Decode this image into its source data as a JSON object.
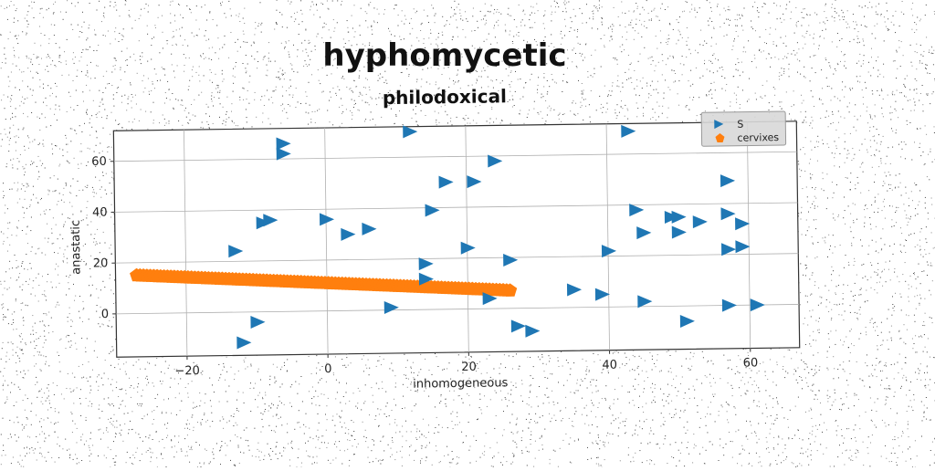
{
  "chart_data": {
    "type": "scatter",
    "suptitle": "hyphomycetic",
    "title": "philodoxical",
    "xlabel": "inhomogeneous",
    "ylabel": "anastatic",
    "xlim": [
      -30,
      67
    ],
    "ylim": [
      -17,
      72
    ],
    "xticks": [
      -20,
      0,
      20,
      40,
      60
    ],
    "yticks": [
      0,
      20,
      40,
      60
    ],
    "xtick_labels": [
      "−20",
      "0",
      "20",
      "40",
      "60"
    ],
    "ytick_labels": [
      "0",
      "20",
      "40",
      "60"
    ],
    "grid": true,
    "legend_position": "upper right",
    "series": [
      {
        "name": "S",
        "marker": "triangle-right",
        "color": "#1f77b4",
        "points": [
          [
            12,
            70
          ],
          [
            -6,
            66
          ],
          [
            -6,
            62
          ],
          [
            43,
            69
          ],
          [
            24,
            58
          ],
          [
            17,
            50
          ],
          [
            21,
            50
          ],
          [
            57,
            49
          ],
          [
            15,
            39
          ],
          [
            -9,
            35
          ],
          [
            -8,
            36
          ],
          [
            0,
            36
          ],
          [
            44,
            38
          ],
          [
            49,
            35
          ],
          [
            50,
            35
          ],
          [
            57,
            36
          ],
          [
            53,
            33
          ],
          [
            59,
            32
          ],
          [
            6,
            32
          ],
          [
            3,
            30
          ],
          [
            45,
            29
          ],
          [
            50,
            29
          ],
          [
            -13,
            24
          ],
          [
            20,
            24
          ],
          [
            40,
            22
          ],
          [
            57,
            22
          ],
          [
            59,
            23
          ],
          [
            26,
            19
          ],
          [
            14,
            18
          ],
          [
            14,
            12
          ],
          [
            35,
            7
          ],
          [
            39,
            5
          ],
          [
            23,
            4
          ],
          [
            9,
            1
          ],
          [
            45,
            2
          ],
          [
            57,
            0
          ],
          [
            61,
            0
          ],
          [
            -10,
            -4
          ],
          [
            51,
            -6
          ],
          [
            27,
            -7
          ],
          [
            29,
            -9
          ],
          [
            -12,
            -12
          ]
        ]
      },
      {
        "name": "cervixes",
        "marker": "pentagon",
        "color": "#ff7f0e",
        "line_start": [
          -27,
          15
        ],
        "line_end": [
          26,
          7
        ],
        "count": 110
      }
    ]
  }
}
